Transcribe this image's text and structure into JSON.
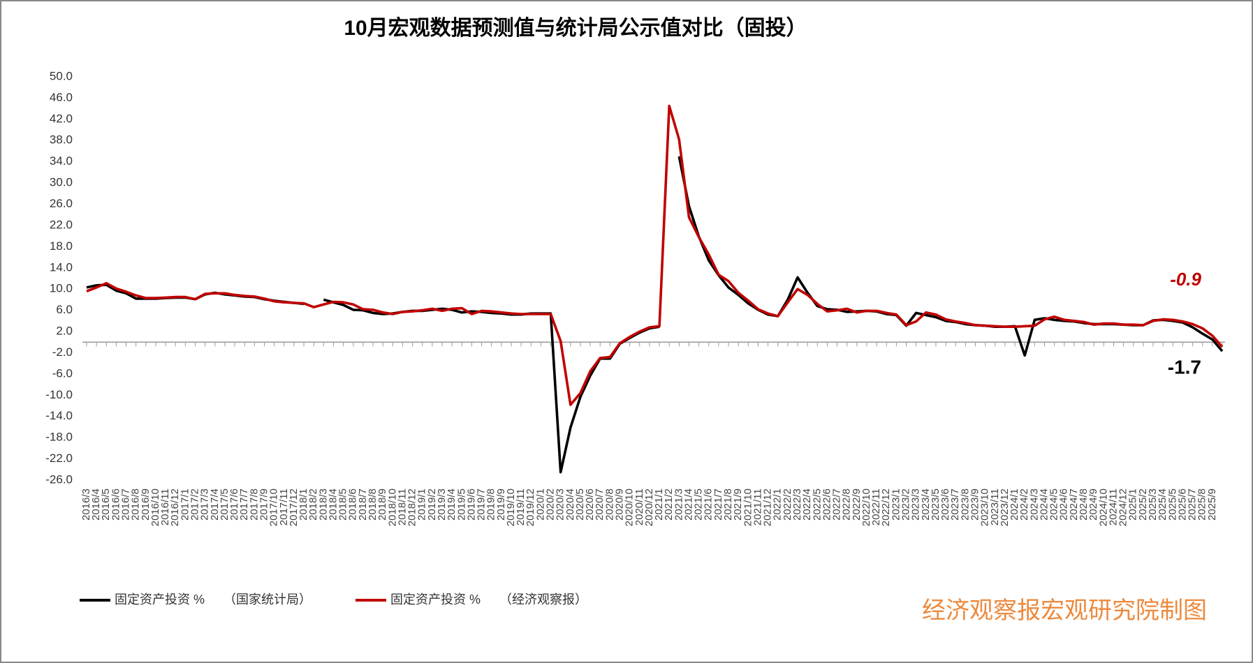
{
  "chart_data": {
    "type": "line",
    "title": "10月宏观数据预测值与统计局公示值对比（固投）",
    "credit": "经济观察报宏观研究院制图",
    "categories": [
      "2016/3",
      "2016/4",
      "2016/5",
      "2016/6",
      "2016/7",
      "2016/8",
      "2016/9",
      "2016/10",
      "2016/11",
      "2016/12",
      "2017/1",
      "2017/2",
      "2017/3",
      "2017/4",
      "2017/5",
      "2017/6",
      "2017/7",
      "2017/8",
      "2017/9",
      "2017/10",
      "2017/11",
      "2017/12",
      "2018/1",
      "2018/2",
      "2018/3",
      "2018/4",
      "2018/5",
      "2018/6",
      "2018/7",
      "2018/8",
      "2018/9",
      "2018/10",
      "2018/11",
      "2018/12",
      "2019/1",
      "2019/2",
      "2019/3",
      "2019/4",
      "2019/5",
      "2019/6",
      "2019/7",
      "2019/8",
      "2019/9",
      "2019/10",
      "2019/11",
      "2019/12",
      "2020/1",
      "2020/2",
      "2020/3",
      "2020/4",
      "2020/5",
      "2020/6",
      "2020/7",
      "2020/8",
      "2020/9",
      "2020/10",
      "2020/11",
      "2020/12",
      "2021/1",
      "2021/2",
      "2021/3",
      "2021/4",
      "2021/5",
      "2021/6",
      "2021/7",
      "2021/8",
      "2021/9",
      "2021/10",
      "2021/11",
      "2021/12",
      "2022/1",
      "2022/2",
      "2022/3",
      "2022/4",
      "2022/5",
      "2022/6",
      "2022/7",
      "2022/8",
      "2022/9",
      "2022/10",
      "2022/11",
      "2022/12",
      "2023/1",
      "2023/2",
      "2023/3",
      "2023/4",
      "2023/5",
      "2023/6",
      "2023/7",
      "2023/8",
      "2023/9",
      "2023/10",
      "2023/11",
      "2023/12",
      "2024/1",
      "2024/2",
      "2024/3",
      "2024/4",
      "2024/5",
      "2024/6",
      "2024/7",
      "2024/8",
      "2024/9",
      "2024/10",
      "2024/11",
      "2024/12",
      "2025/1",
      "2025/2",
      "2025/3",
      "2025/4",
      "2025/5",
      "2025/6",
      "2025/7",
      "2025/8",
      "2025/9",
      null
    ],
    "series": [
      {
        "name": "固定资产投资 %　　（国家统计局）",
        "color": "#000000",
        "values": [
          10.3,
          10.7,
          10.8,
          9.7,
          9.2,
          8.2,
          8.2,
          8.2,
          8.3,
          8.4,
          8.4,
          8.1,
          9.0,
          9.3,
          9.0,
          8.8,
          8.6,
          8.5,
          8.1,
          7.8,
          7.6,
          7.4,
          7.2,
          null,
          8.0,
          7.5,
          7.0,
          6.1,
          6.0,
          5.5,
          5.3,
          5.4,
          5.7,
          5.9,
          5.9,
          6.1,
          6.3,
          6.1,
          5.6,
          5.8,
          5.7,
          5.5,
          5.4,
          5.2,
          5.2,
          5.4,
          5.4,
          5.4,
          -24.5,
          -16.1,
          -10.3,
          -6.3,
          -3.1,
          -3.1,
          -0.3,
          0.8,
          1.8,
          2.6,
          2.9,
          null,
          35.0,
          25.6,
          19.9,
          15.4,
          12.6,
          10.3,
          8.9,
          7.3,
          6.1,
          5.2,
          4.9,
          8.0,
          12.2,
          9.3,
          6.8,
          6.2,
          6.1,
          5.7,
          5.8,
          5.9,
          5.8,
          5.3,
          5.1,
          3.1,
          5.5,
          5.1,
          4.7,
          4.0,
          3.8,
          3.4,
          3.2,
          3.1,
          2.9,
          2.9,
          3.0,
          -2.5,
          4.2,
          4.5,
          4.2,
          4.0,
          3.9,
          3.6,
          3.4,
          3.4,
          3.4,
          3.3,
          3.2,
          3.2,
          4.1,
          4.2,
          4.0,
          3.7,
          2.8,
          1.6,
          0.5,
          -1.7
        ]
      },
      {
        "name": "固定资产投资 %　　（经济观察报）",
        "color": "#c00000",
        "values": [
          9.6,
          10.3,
          11.1,
          10.1,
          9.5,
          8.8,
          8.3,
          8.3,
          8.4,
          8.5,
          8.5,
          8.1,
          9.1,
          9.2,
          9.2,
          8.9,
          8.7,
          8.6,
          8.2,
          7.7,
          7.5,
          7.4,
          7.3,
          6.6,
          7.1,
          7.6,
          7.5,
          7.1,
          6.2,
          6.1,
          5.6,
          5.3,
          5.7,
          5.8,
          6.0,
          6.3,
          5.9,
          6.3,
          6.4,
          5.3,
          5.9,
          5.8,
          5.6,
          5.4,
          5.3,
          5.3,
          5.3,
          5.3,
          0.2,
          -11.8,
          -9.6,
          -5.5,
          -3.0,
          -2.8,
          -0.2,
          1.0,
          2.0,
          2.8,
          3.0,
          44.5,
          38.2,
          23.5,
          19.8,
          16.5,
          12.7,
          11.5,
          9.3,
          7.8,
          6.2,
          5.4,
          4.9,
          7.5,
          10.0,
          8.9,
          7.2,
          5.8,
          6.0,
          6.3,
          5.6,
          5.9,
          5.9,
          5.5,
          5.2,
          3.2,
          3.9,
          5.6,
          5.2,
          4.3,
          3.9,
          3.6,
          3.2,
          3.1,
          3.0,
          2.9,
          2.9,
          3.0,
          3.1,
          4.3,
          4.8,
          4.2,
          4.0,
          3.8,
          3.3,
          3.5,
          3.5,
          3.3,
          3.3,
          3.2,
          4.0,
          4.3,
          4.2,
          3.9,
          3.4,
          2.6,
          1.2,
          -0.9
        ]
      }
    ],
    "ylim": [
      -26,
      50
    ],
    "yticks": [
      {
        "value": 50,
        "label": "50.0"
      },
      {
        "value": 46,
        "label": "46.0"
      },
      {
        "value": 42,
        "label": "42.0"
      },
      {
        "value": 38,
        "label": "38.0"
      },
      {
        "value": 34,
        "label": "34.0"
      },
      {
        "value": 30,
        "label": "30.0"
      },
      {
        "value": 26,
        "label": "26.0"
      },
      {
        "value": 22,
        "label": "22.0"
      },
      {
        "value": 18,
        "label": "18.0"
      },
      {
        "value": 14,
        "label": "14.0"
      },
      {
        "value": 10,
        "label": "10.0"
      },
      {
        "value": 6,
        "label": "6.0"
      },
      {
        "value": 2,
        "label": "2.0"
      },
      {
        "value": -2,
        "label": "-2.0"
      },
      {
        "value": -6,
        "label": "-6.0"
      },
      {
        "value": -10,
        "label": "-10.0"
      },
      {
        "value": -14,
        "label": "-14.0"
      },
      {
        "value": -18,
        "label": "-18.0"
      },
      {
        "value": -22,
        "label": "-22.0"
      },
      {
        "value": -26,
        "label": "-26.0"
      }
    ],
    "grid": false,
    "legend": "bottom-left"
  }
}
